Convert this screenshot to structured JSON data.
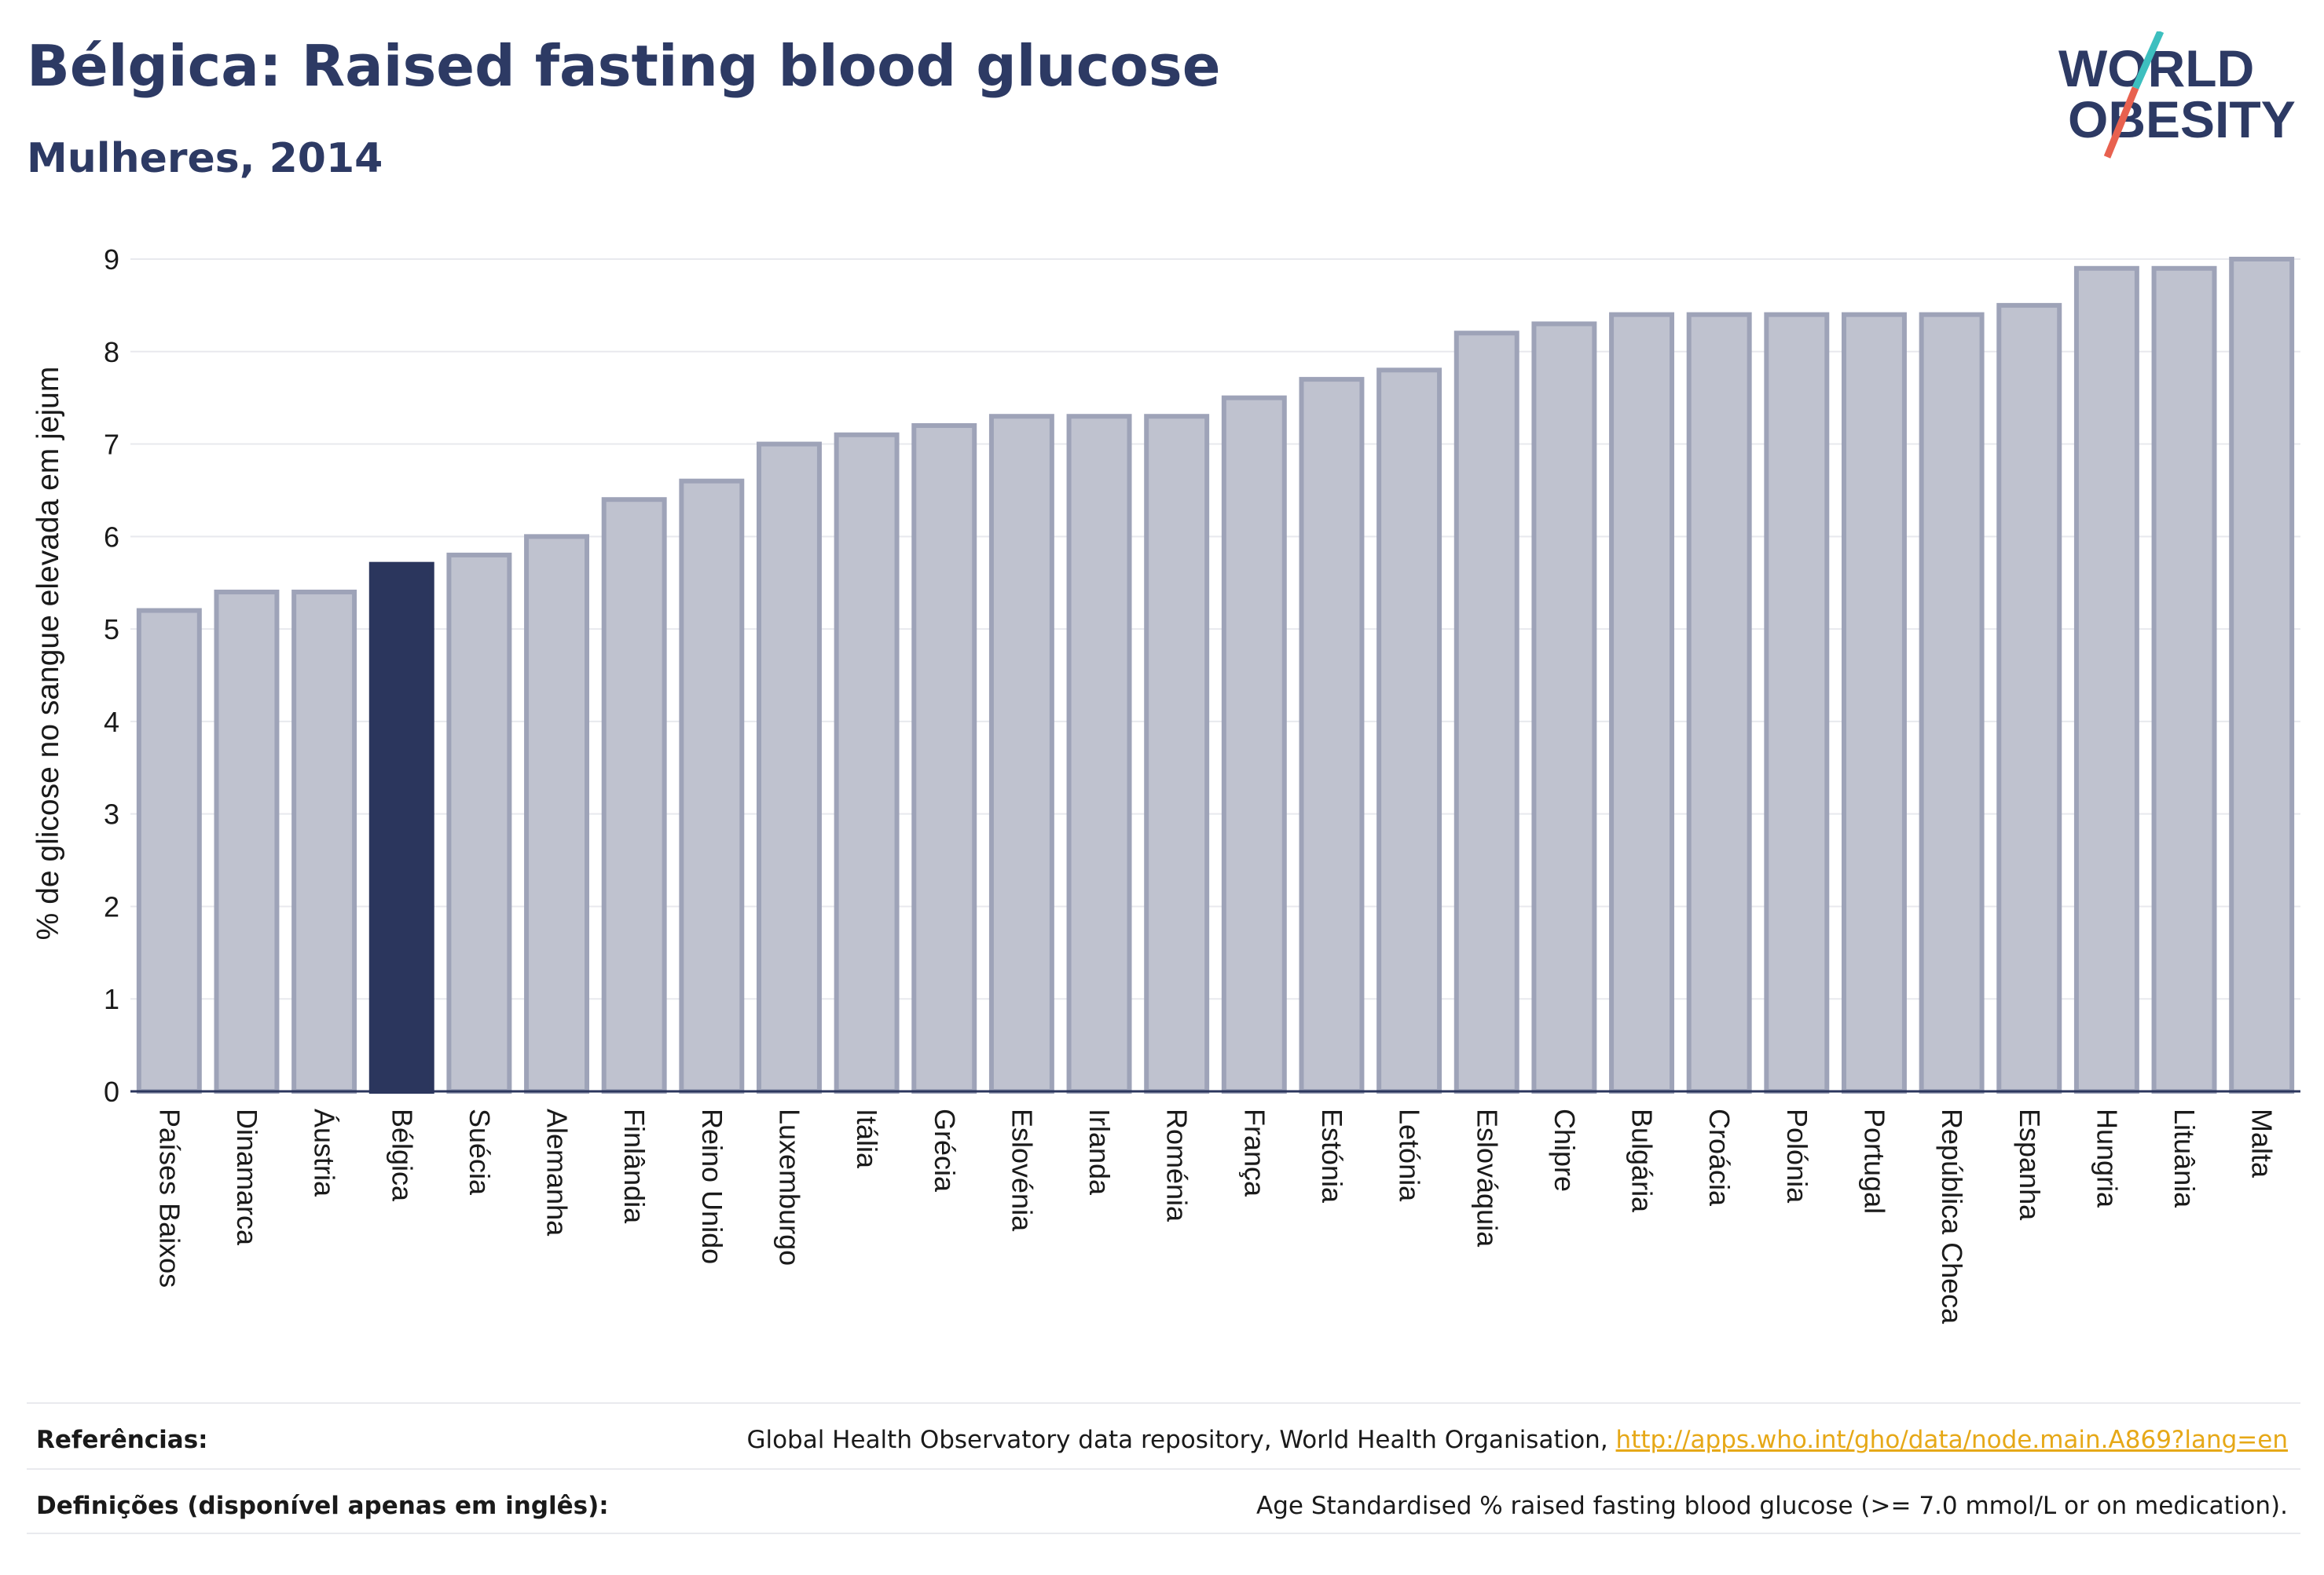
{
  "header": {
    "title": "Bélgica: Raised fasting blood glucose",
    "subtitle": "Mulheres, 2014"
  },
  "logo": {
    "line1": "WORLD",
    "line2": "OBESITY",
    "colors": {
      "text": "#2d3a64",
      "slash_top": "#3dbfbf",
      "slash_bottom": "#e8614f"
    }
  },
  "chart_data": {
    "type": "bar",
    "title": "Bélgica: Raised fasting blood glucose",
    "subtitle": "Mulheres, 2014",
    "ylabel": "% de glicose no sangue elevada em jejum",
    "xlabel": "",
    "ylim": [
      0,
      9
    ],
    "yticks": [
      0,
      1,
      2,
      3,
      4,
      5,
      6,
      7,
      8,
      9
    ],
    "grid": true,
    "highlight": "Bélgica",
    "colors": {
      "bar": "#bfc2cf",
      "bar_border": "#9ea3b8",
      "highlight": "#2b365d",
      "grid": "#e8e9ee",
      "axis": "#2b365d"
    },
    "categories": [
      "Países Baixos",
      "Dinamarca",
      "Áustria",
      "Bélgica",
      "Suécia",
      "Alemanha",
      "Finlândia",
      "Reino Unido",
      "Luxemburgo",
      "Itália",
      "Grécia",
      "Eslovénia",
      "Irlanda",
      "Roménia",
      "França",
      "Estónia",
      "Letónia",
      "Eslováquia",
      "Chipre",
      "Bulgária",
      "Croácia",
      "Polónia",
      "Portugal",
      "República Checa",
      "Espanha",
      "Hungria",
      "Lituânia",
      "Malta"
    ],
    "values": [
      5.2,
      5.4,
      5.4,
      5.7,
      5.8,
      6.0,
      6.4,
      6.6,
      7.0,
      7.1,
      7.2,
      7.3,
      7.3,
      7.3,
      7.5,
      7.7,
      7.8,
      8.2,
      8.3,
      8.4,
      8.4,
      8.4,
      8.4,
      8.4,
      8.5,
      8.9,
      8.9,
      9.0
    ]
  },
  "footer": {
    "references_label": "Referências:",
    "references_text": "Global Health Observatory data repository, World Health Organisation, ",
    "references_link": "http://apps.who.int/gho/data/node.main.A869?lang=en",
    "definitions_label": "Definições (disponível apenas em inglês):",
    "definitions_text": "Age Standardised % raised fasting blood glucose (>= 7.0 mmol/L or on medication)."
  }
}
